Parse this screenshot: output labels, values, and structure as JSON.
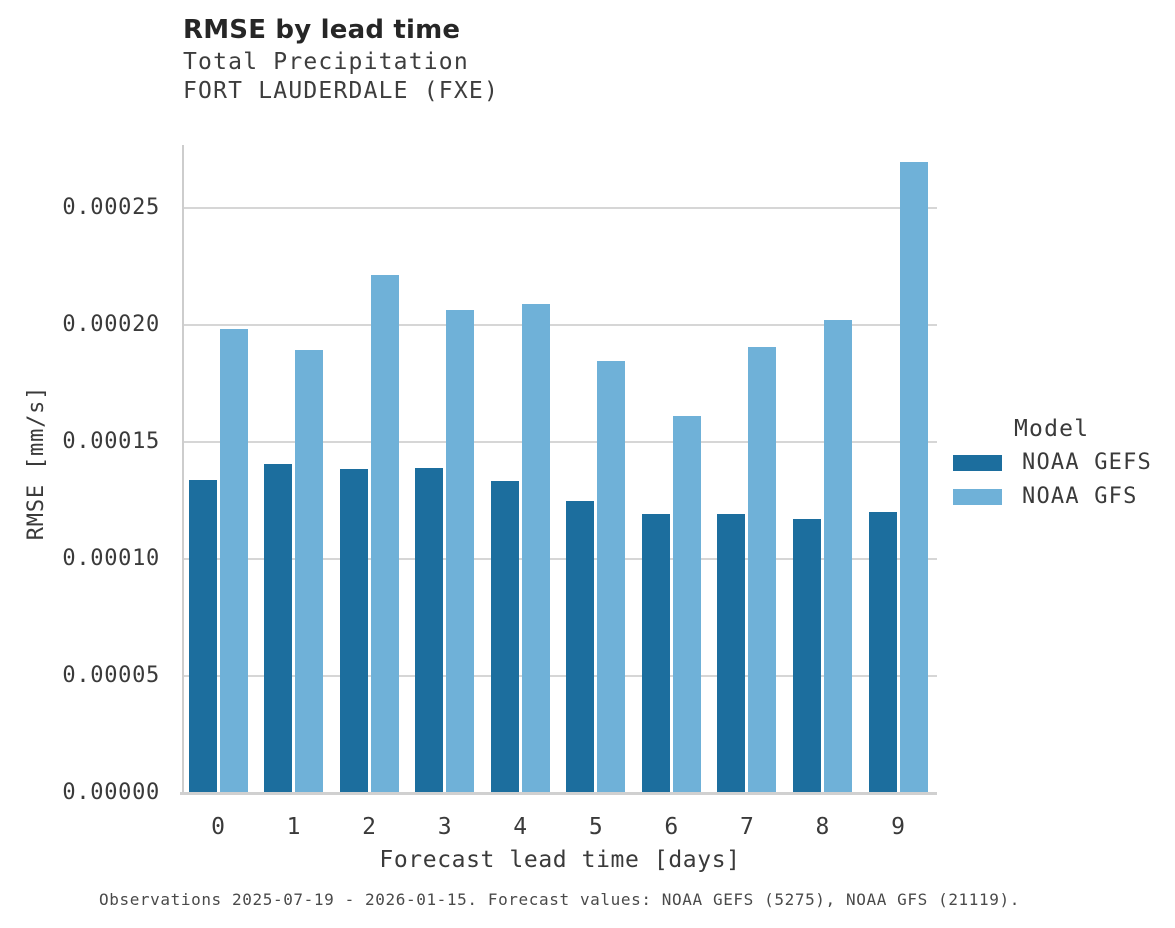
{
  "chart_data": {
    "type": "bar",
    "title": "RMSE by lead time",
    "subtitle": "Total Precipitation",
    "subtitle2": "FORT LAUDERDALE (FXE)",
    "xlabel": "Forecast lead time [days]",
    "ylabel": "RMSE [mm/s]",
    "legend_title": "Model",
    "legend_position": "right",
    "grid": true,
    "background": "#ffffff",
    "categories": [
      "0",
      "1",
      "2",
      "3",
      "4",
      "5",
      "6",
      "7",
      "8",
      "9"
    ],
    "series": [
      {
        "name": "NOAA GEFS",
        "color": "#1c6e9e",
        "values": [
          0.0001335,
          0.0001403,
          0.0001383,
          0.0001389,
          0.0001333,
          0.0001245,
          0.0001191,
          0.0001192,
          0.0001171,
          0.00012
        ]
      },
      {
        "name": "NOAA GFS",
        "color": "#6fb1d8",
        "values": [
          0.000198,
          0.0001893,
          0.0002212,
          0.0002061,
          0.0002088,
          0.0001847,
          0.0001611,
          0.0001906,
          0.0002018,
          0.0002693
        ]
      }
    ],
    "ylim": [
      0,
      0.000277
    ],
    "yticks": [
      {
        "value": 0.0,
        "label": "0.00000"
      },
      {
        "value": 5e-05,
        "label": "0.00005"
      },
      {
        "value": 0.0001,
        "label": "0.00010"
      },
      {
        "value": 0.00015,
        "label": "0.00015"
      },
      {
        "value": 0.0002,
        "label": "0.00020"
      },
      {
        "value": 0.00025,
        "label": "0.00025"
      }
    ],
    "caption": "Observations 2025-07-19 - 2026-01-15. Forecast values: NOAA GEFS (5275), NOAA GFS (21119)."
  }
}
